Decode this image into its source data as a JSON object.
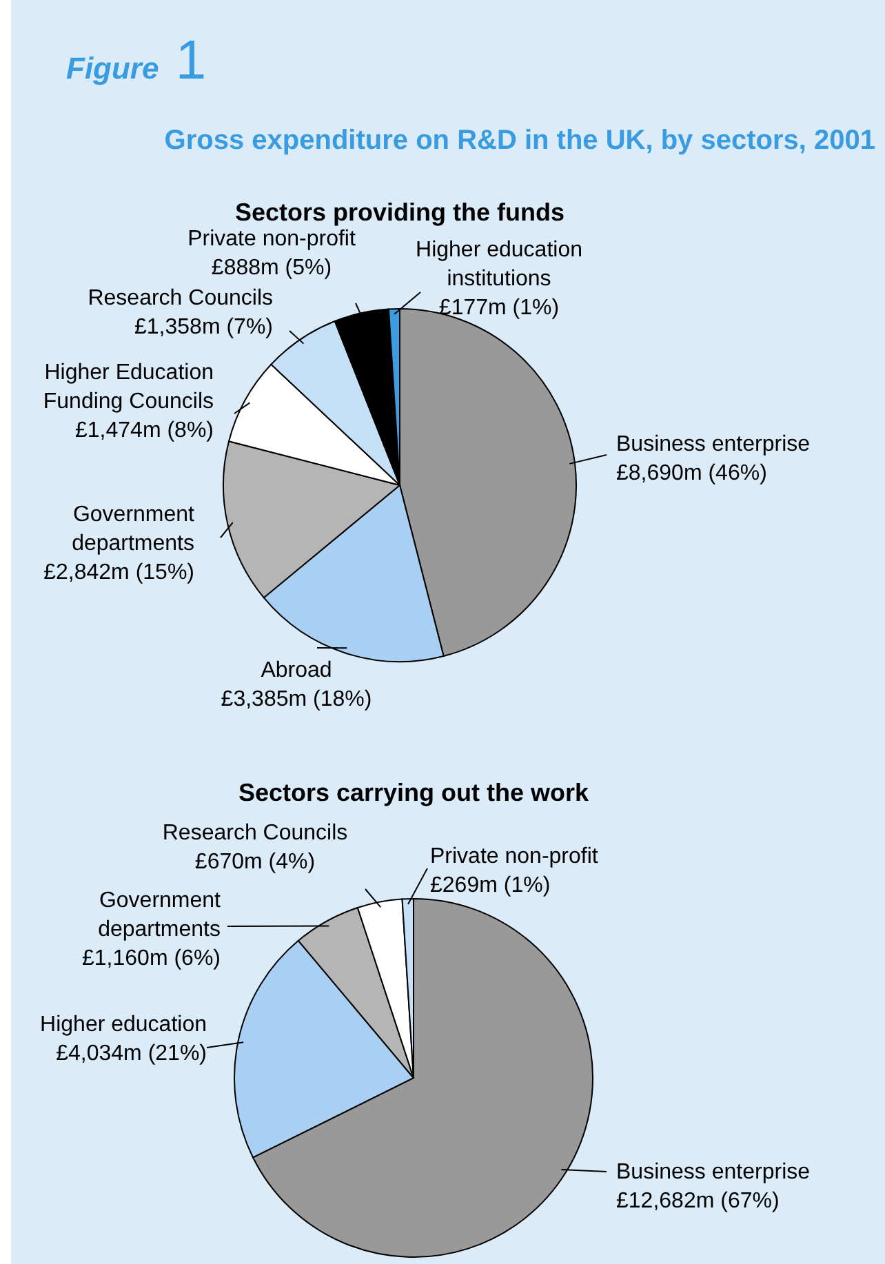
{
  "chart_data": [
    {
      "type": "pie",
      "title": "Gross expenditure on R&D in the UK, by sectors, 2001",
      "subtitle": "Sectors providing the funds",
      "annotations": [
        "Figure 1"
      ],
      "categories": [
        "Business enterprise",
        "Abroad",
        "Government departments",
        "Higher Education Funding Councils",
        "Research Councils",
        "Private non-profit",
        "Higher education institutions"
      ],
      "values": [
        46,
        18,
        15,
        8,
        7,
        5,
        1
      ],
      "value_labels": [
        "£8,690m (46%)",
        "£3,385m (18%)",
        "£2,842m (15%)",
        "£1,474m (8%)",
        "£1,358m (7%)",
        "£888m (5%)",
        "£177m (1%)"
      ],
      "colors": [
        "#999999",
        "#a9cff2",
        "#b5b5b5",
        "#ffffff",
        "#c6e0f7",
        "#000000",
        "#3d9be0"
      ]
    },
    {
      "type": "pie",
      "title": "Sectors carrying out the work",
      "categories": [
        "Business enterprise",
        "Higher education",
        "Government departments",
        "Research Councils",
        "Private non-profit"
      ],
      "values": [
        67,
        21,
        6,
        4,
        1
      ],
      "value_labels": [
        "£12,682m (67%)",
        "£4,034m (21%)",
        "£1,160m (6%)",
        "£670m (4%)",
        "£269m (1%)"
      ],
      "colors": [
        "#999999",
        "#a9cff2",
        "#b5b5b5",
        "#ffffff",
        "#c6e0f7"
      ]
    }
  ]
}
